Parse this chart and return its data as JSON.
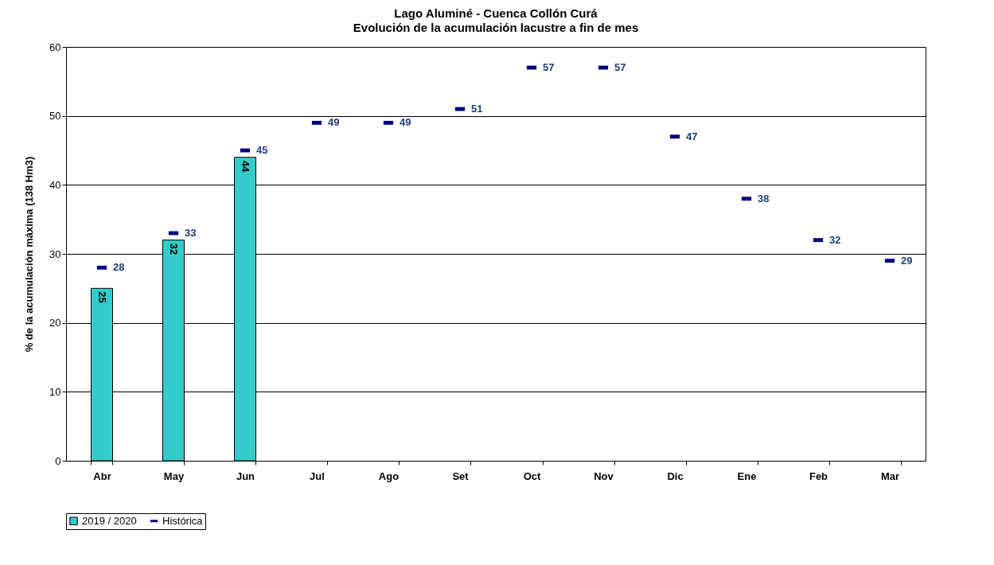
{
  "chart_data": {
    "type": "bar",
    "title": "Lago Aluminé - Cuenca Collón Curá",
    "subtitle": "Evolución de la acumulación lacustre a fin de mes",
    "ylabel": "% de la acumulación máxima (138 Hm3)",
    "categories": [
      "Abr",
      "May",
      "Jun",
      "Jul",
      "Ago",
      "Set",
      "Oct",
      "Nov",
      "Dic",
      "Ene",
      "Feb",
      "Mar"
    ],
    "series": [
      {
        "name": "2019 / 2020",
        "type": "bar",
        "color": "#33cccc",
        "values": [
          25,
          32,
          44,
          null,
          null,
          null,
          null,
          null,
          null,
          null,
          null,
          null
        ]
      },
      {
        "name": "Histórica",
        "type": "scatter",
        "color": "#000080",
        "values": [
          28,
          33,
          45,
          49,
          49,
          51,
          57,
          57,
          47,
          38,
          32,
          29
        ]
      }
    ],
    "ylim": [
      0,
      60
    ],
    "yticks": [
      0,
      10,
      20,
      30,
      40,
      50,
      60
    ],
    "grid": "y",
    "legend": "bottom",
    "data_labels": true
  }
}
